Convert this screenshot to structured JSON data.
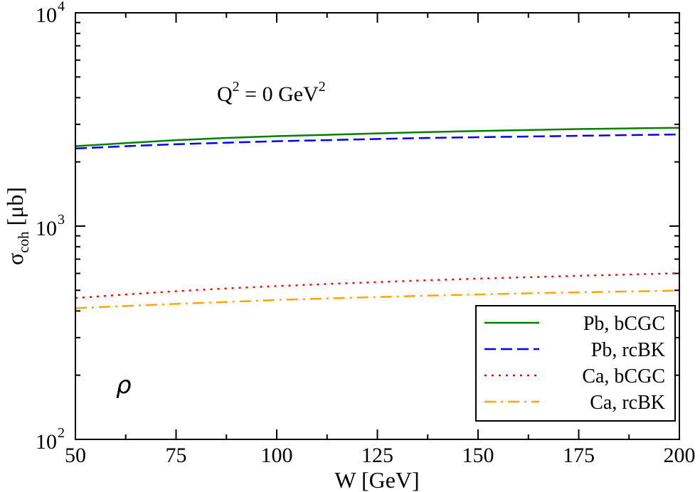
{
  "chart_data": {
    "type": "line",
    "title": "",
    "annotation": {
      "q_text": "Q",
      "q_sup": "2",
      "eq_text": " = 0 GeV",
      "unit_sup": "2"
    },
    "meson_label": "ρ",
    "xlabel": "W [GeV]",
    "ylabel": {
      "symbol": "σ",
      "sub": "coh",
      "unit": " [μb]"
    },
    "xlim": [
      50,
      200
    ],
    "ylim": [
      100,
      10000
    ],
    "yscale": "log",
    "grid": false,
    "legend_position": "bottom-right",
    "x_ticks": [
      {
        "value": 50,
        "label": "50"
      },
      {
        "value": 75,
        "label": "75"
      },
      {
        "value": 100,
        "label": "100"
      },
      {
        "value": 125,
        "label": "125"
      },
      {
        "value": 150,
        "label": "150"
      },
      {
        "value": 175,
        "label": "175"
      },
      {
        "value": 200,
        "label": "200"
      }
    ],
    "y_ticks": [
      {
        "value": 100,
        "base": "10",
        "exp": "2"
      },
      {
        "value": 1000,
        "base": "10",
        "exp": "3"
      },
      {
        "value": 10000,
        "base": "10",
        "exp": "4"
      }
    ],
    "x": [
      50,
      62.5,
      75,
      87.5,
      100,
      112.5,
      125,
      137.5,
      150,
      162.5,
      175,
      187.5,
      200
    ],
    "series": [
      {
        "name": "Pb, bCGC",
        "color": "#008000",
        "style": "solid",
        "values": [
          2370,
          2450,
          2530,
          2590,
          2640,
          2680,
          2720,
          2760,
          2790,
          2820,
          2850,
          2870,
          2890
        ]
      },
      {
        "name": "Pb, rcBK",
        "color": "#0000ff",
        "style": "dashed",
        "values": [
          2310,
          2370,
          2420,
          2460,
          2500,
          2530,
          2560,
          2590,
          2610,
          2630,
          2650,
          2670,
          2690
        ]
      },
      {
        "name": "Ca, bCGC",
        "color": "#ff0000",
        "style": "dotted",
        "values": [
          460,
          478,
          495,
          510,
          523,
          535,
          546,
          557,
          567,
          576,
          585,
          593,
          601
        ]
      },
      {
        "name": "Ca, rcBK",
        "color": "#ffa500",
        "style": "dashdot",
        "values": [
          412,
          422,
          432,
          441,
          450,
          458,
          465,
          472,
          478,
          484,
          489,
          494,
          498
        ]
      }
    ]
  }
}
